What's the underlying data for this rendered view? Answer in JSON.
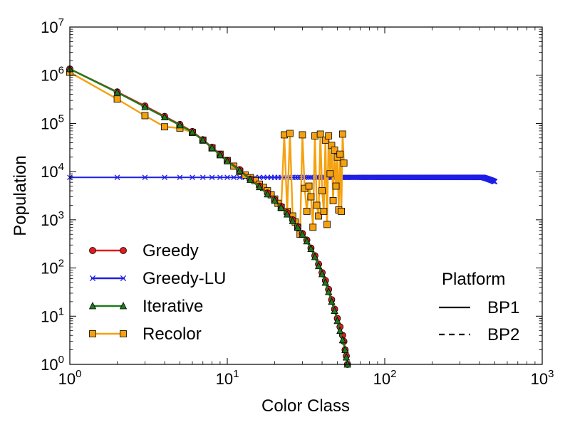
{
  "chart_data": {
    "type": "line",
    "xlabel": "Color Class",
    "ylabel": "Population",
    "xscale": "log",
    "yscale": "log",
    "xlim": [
      1,
      1000
    ],
    "ylim": [
      1,
      10000000
    ],
    "grid": false,
    "legend_placement": "lower-left",
    "x_ticks": [
      {
        "base": "10",
        "exp": "0"
      },
      {
        "base": "10",
        "exp": "1"
      },
      {
        "base": "10",
        "exp": "2"
      },
      {
        "base": "10",
        "exp": "3"
      }
    ],
    "y_ticks": [
      {
        "base": "10",
        "exp": "0"
      },
      {
        "base": "10",
        "exp": "1"
      },
      {
        "base": "10",
        "exp": "2"
      },
      {
        "base": "10",
        "exp": "3"
      },
      {
        "base": "10",
        "exp": "4"
      },
      {
        "base": "10",
        "exp": "5"
      },
      {
        "base": "10",
        "exp": "6"
      },
      {
        "base": "10",
        "exp": "7"
      }
    ],
    "series": [
      {
        "name": "Greedy",
        "color": "#e41a1c",
        "marker": "circle",
        "points": [
          [
            1,
            1350000
          ],
          [
            2,
            450000
          ],
          [
            3,
            230000
          ],
          [
            4,
            140000
          ],
          [
            5,
            95000
          ],
          [
            6,
            68000
          ],
          [
            7,
            46000
          ],
          [
            8,
            32000
          ],
          [
            9,
            23000
          ],
          [
            10,
            17000
          ],
          [
            12,
            11000
          ],
          [
            14,
            7000
          ],
          [
            16,
            5000
          ],
          [
            18,
            3600
          ],
          [
            20,
            2600
          ],
          [
            22,
            1900
          ],
          [
            24,
            1400
          ],
          [
            26,
            1000
          ],
          [
            28,
            720
          ],
          [
            30,
            520
          ],
          [
            32,
            380
          ],
          [
            34,
            260
          ],
          [
            36,
            180
          ],
          [
            38,
            120
          ],
          [
            40,
            80
          ],
          [
            42,
            55
          ],
          [
            44,
            36
          ],
          [
            46,
            22
          ],
          [
            48,
            14
          ],
          [
            50,
            9
          ],
          [
            52,
            6
          ],
          [
            54,
            4
          ],
          [
            55,
            3
          ],
          [
            56,
            2
          ],
          [
            57,
            1.5
          ],
          [
            58,
            1
          ]
        ]
      },
      {
        "name": "Greedy-LU",
        "color": "#1f1fe6",
        "marker": "x",
        "n_points": 500,
        "y_value": 7600,
        "y_end": 6200
      },
      {
        "name": "Iterative",
        "color": "#1e7a1e",
        "marker": "triangle",
        "points": [
          [
            1,
            1350000
          ],
          [
            2,
            440000
          ],
          [
            3,
            220000
          ],
          [
            4,
            135000
          ],
          [
            5,
            92000
          ],
          [
            6,
            66000
          ],
          [
            7,
            45000
          ],
          [
            8,
            31000
          ],
          [
            9,
            22000
          ],
          [
            10,
            16500
          ],
          [
            12,
            10500
          ],
          [
            14,
            6800
          ],
          [
            16,
            4800
          ],
          [
            18,
            3400
          ],
          [
            20,
            2500
          ],
          [
            22,
            1800
          ],
          [
            24,
            1300
          ],
          [
            26,
            950
          ],
          [
            28,
            700
          ],
          [
            30,
            500
          ],
          [
            32,
            360
          ],
          [
            34,
            250
          ],
          [
            36,
            170
          ],
          [
            38,
            110
          ],
          [
            40,
            75
          ],
          [
            42,
            50
          ],
          [
            44,
            32
          ],
          [
            46,
            20
          ],
          [
            48,
            13
          ],
          [
            50,
            8
          ],
          [
            52,
            5
          ],
          [
            54,
            3.2
          ],
          [
            56,
            2
          ],
          [
            57,
            1.4
          ],
          [
            58,
            1
          ]
        ]
      },
      {
        "name": "Recolor",
        "color": "#f5a10f",
        "marker": "square",
        "points": [
          [
            1,
            1150000
          ],
          [
            2,
            320000
          ],
          [
            3,
            145000
          ],
          [
            4,
            85000
          ],
          [
            5,
            80000
          ],
          [
            6,
            65000
          ],
          [
            7,
            45000
          ],
          [
            8,
            31000
          ],
          [
            9,
            23000
          ],
          [
            10,
            17000
          ],
          [
            11,
            13000
          ],
          [
            12,
            10000
          ],
          [
            13,
            8500
          ],
          [
            14,
            7500
          ],
          [
            15,
            6500
          ],
          [
            16,
            5500
          ],
          [
            17,
            4700
          ],
          [
            18,
            4000
          ],
          [
            19,
            3300
          ],
          [
            20,
            2700
          ],
          [
            21,
            2200
          ],
          [
            22,
            1800
          ],
          [
            23,
            58000
          ],
          [
            24,
            1500
          ],
          [
            25,
            62000
          ],
          [
            26,
            1200
          ],
          [
            27,
            900
          ],
          [
            28,
            700
          ],
          [
            29,
            500
          ],
          [
            30,
            58000
          ],
          [
            31,
            4500
          ],
          [
            32,
            1500
          ],
          [
            33,
            5000
          ],
          [
            34,
            3000
          ],
          [
            35,
            700
          ],
          [
            36,
            55000
          ],
          [
            37,
            2000
          ],
          [
            38,
            1200
          ],
          [
            39,
            60000
          ],
          [
            40,
            4000
          ],
          [
            41,
            1500
          ],
          [
            42,
            45000
          ],
          [
            43,
            800
          ],
          [
            44,
            55000
          ],
          [
            45,
            9000
          ],
          [
            46,
            35000
          ],
          [
            47,
            2500
          ],
          [
            48,
            28000
          ],
          [
            49,
            5000
          ],
          [
            50,
            20000
          ],
          [
            51,
            1600
          ],
          [
            52,
            23000
          ],
          [
            53,
            1500
          ],
          [
            54,
            60000
          ],
          [
            55,
            15000
          ]
        ]
      }
    ],
    "legend": [
      {
        "label": "Greedy",
        "color": "#e41a1c",
        "marker": "circle"
      },
      {
        "label": "Greedy-LU",
        "color": "#1f1fe6",
        "marker": "x"
      },
      {
        "label": "Iterative",
        "color": "#1e7a1e",
        "marker": "triangle"
      },
      {
        "label": "Recolor",
        "color": "#f5a10f",
        "marker": "square"
      }
    ],
    "platform_legend": {
      "title": "Platform",
      "items": [
        {
          "label": "BP1",
          "style": "solid"
        },
        {
          "label": "BP2",
          "style": "dashed"
        }
      ]
    }
  }
}
